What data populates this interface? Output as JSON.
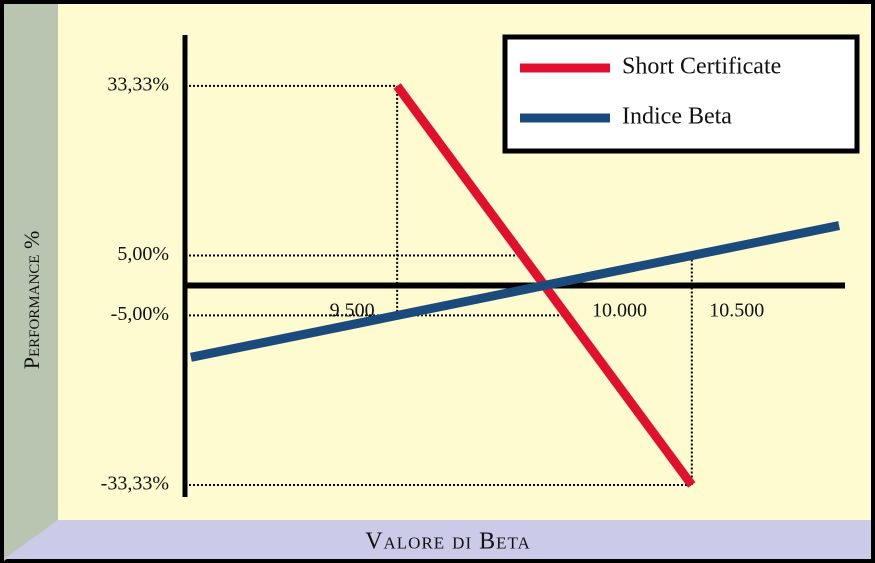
{
  "chart_data": {
    "type": "line",
    "ylabel": "Performance %",
    "xlabel": "Valore di Beta",
    "xlim": [
      8780,
      11020
    ],
    "xticks": [
      {
        "value": 9500,
        "label": "9.500"
      },
      {
        "value": 10000,
        "label": "10.000"
      },
      {
        "value": 10500,
        "label": "10.500"
      }
    ],
    "ylim": [
      -35,
      41
    ],
    "yticks": [
      {
        "value": 33.33,
        "label": "33,33%"
      },
      {
        "value": 5,
        "label": "5,00%"
      },
      {
        "value": -5,
        "label": "-5,00%"
      },
      {
        "value": -33.33,
        "label": "-33,33%"
      }
    ],
    "series": [
      {
        "name": "Short Certificate",
        "color": "#e0102e",
        "x": [
          9500,
          10000,
          10500
        ],
        "values": [
          33.33,
          0,
          -33.33
        ]
      },
      {
        "name": "Indice Beta",
        "color": "#1b4b7c",
        "x": [
          8800,
          10000,
          11000
        ],
        "values": [
          -12,
          0,
          10
        ]
      }
    ],
    "legend": "upper right"
  }
}
